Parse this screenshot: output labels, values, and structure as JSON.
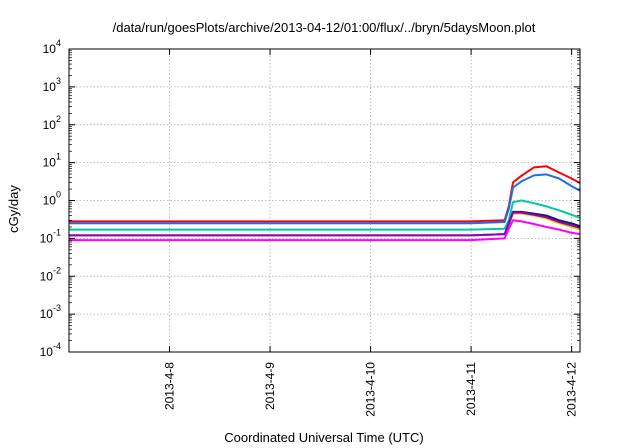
{
  "chart_data": {
    "type": "line",
    "title": "/data/run/goesPlots/archive/2013-04-12/01:00/flux/../bryn/5daysMoon.plot",
    "xlabel": "Coordinated Universal Time (UTC)",
    "ylabel": "cGy/day",
    "yscale": "log",
    "ylim": [
      0.0001,
      10000
    ],
    "yticks": [
      {
        "base": "10",
        "exp": "-4"
      },
      {
        "base": "10",
        "exp": "-3"
      },
      {
        "base": "10",
        "exp": "-2"
      },
      {
        "base": "10",
        "exp": "-1"
      },
      {
        "base": "10",
        "exp": "0"
      },
      {
        "base": "10",
        "exp": "1"
      },
      {
        "base": "10",
        "exp": "2"
      },
      {
        "base": "10",
        "exp": "3"
      },
      {
        "base": "10",
        "exp": "4"
      }
    ],
    "xlim": [
      "2013-04-07 00:00",
      "2013-04-12 02:00"
    ],
    "xticks": [
      "2013-4-8",
      "2013-4-9",
      "2013-4-10",
      "2013-4-11",
      "2013-4-12"
    ],
    "grid": true,
    "legend": "none",
    "x": [
      "2013-04-07 00:00",
      "2013-04-07 12:00",
      "2013-04-08 00:00",
      "2013-04-08 12:00",
      "2013-04-09 00:00",
      "2013-04-09 12:00",
      "2013-04-10 00:00",
      "2013-04-10 12:00",
      "2013-04-11 00:00",
      "2013-04-11 08:00",
      "2013-04-11 09:00",
      "2013-04-11 10:00",
      "2013-04-11 12:00",
      "2013-04-11 15:00",
      "2013-04-11 18:00",
      "2013-04-11 21:00",
      "2013-04-12 00:00",
      "2013-04-12 02:00"
    ],
    "series": [
      {
        "color": "#ff0000",
        "values": [
          0.28,
          0.28,
          0.28,
          0.28,
          0.28,
          0.28,
          0.28,
          0.28,
          0.28,
          0.3,
          0.7,
          3.0,
          4.5,
          7.5,
          8.0,
          5.5,
          3.8,
          2.9
        ]
      },
      {
        "color": "#1e6fe6",
        "values": [
          0.25,
          0.25,
          0.25,
          0.25,
          0.25,
          0.25,
          0.25,
          0.25,
          0.25,
          0.27,
          0.6,
          2.2,
          3.2,
          4.6,
          4.9,
          3.8,
          2.4,
          1.8
        ]
      },
      {
        "color": "#00c8a0",
        "values": [
          0.17,
          0.17,
          0.17,
          0.17,
          0.17,
          0.17,
          0.17,
          0.17,
          0.17,
          0.18,
          0.3,
          0.9,
          1.0,
          0.85,
          0.7,
          0.55,
          0.42,
          0.35
        ]
      },
      {
        "color": "#102060",
        "values": [
          0.12,
          0.12,
          0.12,
          0.12,
          0.12,
          0.12,
          0.12,
          0.12,
          0.12,
          0.13,
          0.25,
          0.5,
          0.5,
          0.45,
          0.4,
          0.3,
          0.25,
          0.21
        ]
      },
      {
        "color": "#f0d000",
        "values": [
          0.12,
          0.12,
          0.12,
          0.12,
          0.12,
          0.12,
          0.12,
          0.12,
          0.12,
          0.13,
          0.22,
          0.45,
          0.45,
          0.4,
          0.33,
          0.25,
          0.2,
          0.17
        ]
      },
      {
        "color": "#9000c0",
        "values": [
          0.12,
          0.12,
          0.12,
          0.12,
          0.12,
          0.12,
          0.12,
          0.12,
          0.12,
          0.13,
          0.24,
          0.48,
          0.48,
          0.42,
          0.36,
          0.27,
          0.22,
          0.19
        ]
      },
      {
        "color": "#ff00ff",
        "values": [
          0.09,
          0.09,
          0.09,
          0.09,
          0.09,
          0.09,
          0.09,
          0.09,
          0.09,
          0.1,
          0.18,
          0.3,
          0.28,
          0.24,
          0.2,
          0.17,
          0.14,
          0.13
        ]
      }
    ]
  }
}
